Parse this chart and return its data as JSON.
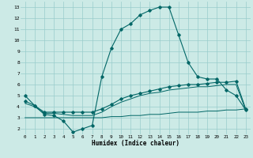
{
  "xlabel": "Humidex (Indice chaleur)",
  "background_color": "#cceae6",
  "grid_color": "#99cccc",
  "line_color": "#006666",
  "xlim": [
    -0.5,
    23.5
  ],
  "ylim": [
    1.5,
    13.5
  ],
  "xticks": [
    0,
    1,
    2,
    3,
    4,
    5,
    6,
    7,
    8,
    9,
    10,
    11,
    12,
    13,
    14,
    15,
    16,
    17,
    18,
    19,
    20,
    21,
    22,
    23
  ],
  "yticks": [
    2,
    3,
    4,
    5,
    6,
    7,
    8,
    9,
    10,
    11,
    12,
    13
  ],
  "line1_x": [
    0,
    1,
    2,
    3,
    4,
    5,
    6,
    7,
    8,
    9,
    10,
    11,
    12,
    13,
    14,
    15,
    16,
    17,
    18,
    19,
    20,
    21,
    22,
    23
  ],
  "line1_y": [
    5.0,
    4.1,
    3.3,
    3.2,
    2.7,
    1.7,
    2.0,
    2.3,
    6.7,
    9.3,
    11.0,
    11.5,
    12.3,
    12.7,
    13.0,
    13.0,
    10.5,
    8.0,
    6.7,
    6.5,
    6.5,
    5.5,
    5.0,
    3.7
  ],
  "line2_x": [
    0,
    1,
    2,
    3,
    4,
    5,
    6,
    7,
    8,
    9,
    10,
    11,
    12,
    13,
    14,
    15,
    16,
    17,
    18,
    19,
    20,
    21,
    22,
    23
  ],
  "line2_y": [
    4.5,
    4.1,
    3.5,
    3.5,
    3.5,
    3.5,
    3.5,
    3.5,
    3.8,
    4.2,
    4.7,
    5.0,
    5.2,
    5.4,
    5.6,
    5.8,
    5.9,
    6.0,
    6.0,
    6.1,
    6.2,
    6.2,
    6.3,
    3.8
  ],
  "line3_x": [
    0,
    1,
    2,
    3,
    4,
    5,
    6,
    7,
    8,
    9,
    10,
    11,
    12,
    13,
    14,
    15,
    16,
    17,
    18,
    19,
    20,
    21,
    22,
    23
  ],
  "line3_y": [
    4.3,
    4.0,
    3.4,
    3.4,
    3.3,
    3.2,
    3.2,
    3.2,
    3.5,
    4.0,
    4.4,
    4.7,
    5.0,
    5.2,
    5.3,
    5.5,
    5.6,
    5.7,
    5.8,
    5.8,
    5.9,
    6.0,
    6.0,
    3.7
  ],
  "line4_x": [
    0,
    1,
    2,
    3,
    4,
    5,
    6,
    7,
    8,
    9,
    10,
    11,
    12,
    13,
    14,
    15,
    16,
    17,
    18,
    19,
    20,
    21,
    22,
    23
  ],
  "line4_y": [
    3.0,
    3.0,
    3.0,
    3.0,
    3.0,
    3.0,
    3.0,
    3.0,
    3.0,
    3.1,
    3.1,
    3.2,
    3.2,
    3.3,
    3.3,
    3.4,
    3.5,
    3.5,
    3.5,
    3.6,
    3.6,
    3.7,
    3.7,
    3.8
  ]
}
